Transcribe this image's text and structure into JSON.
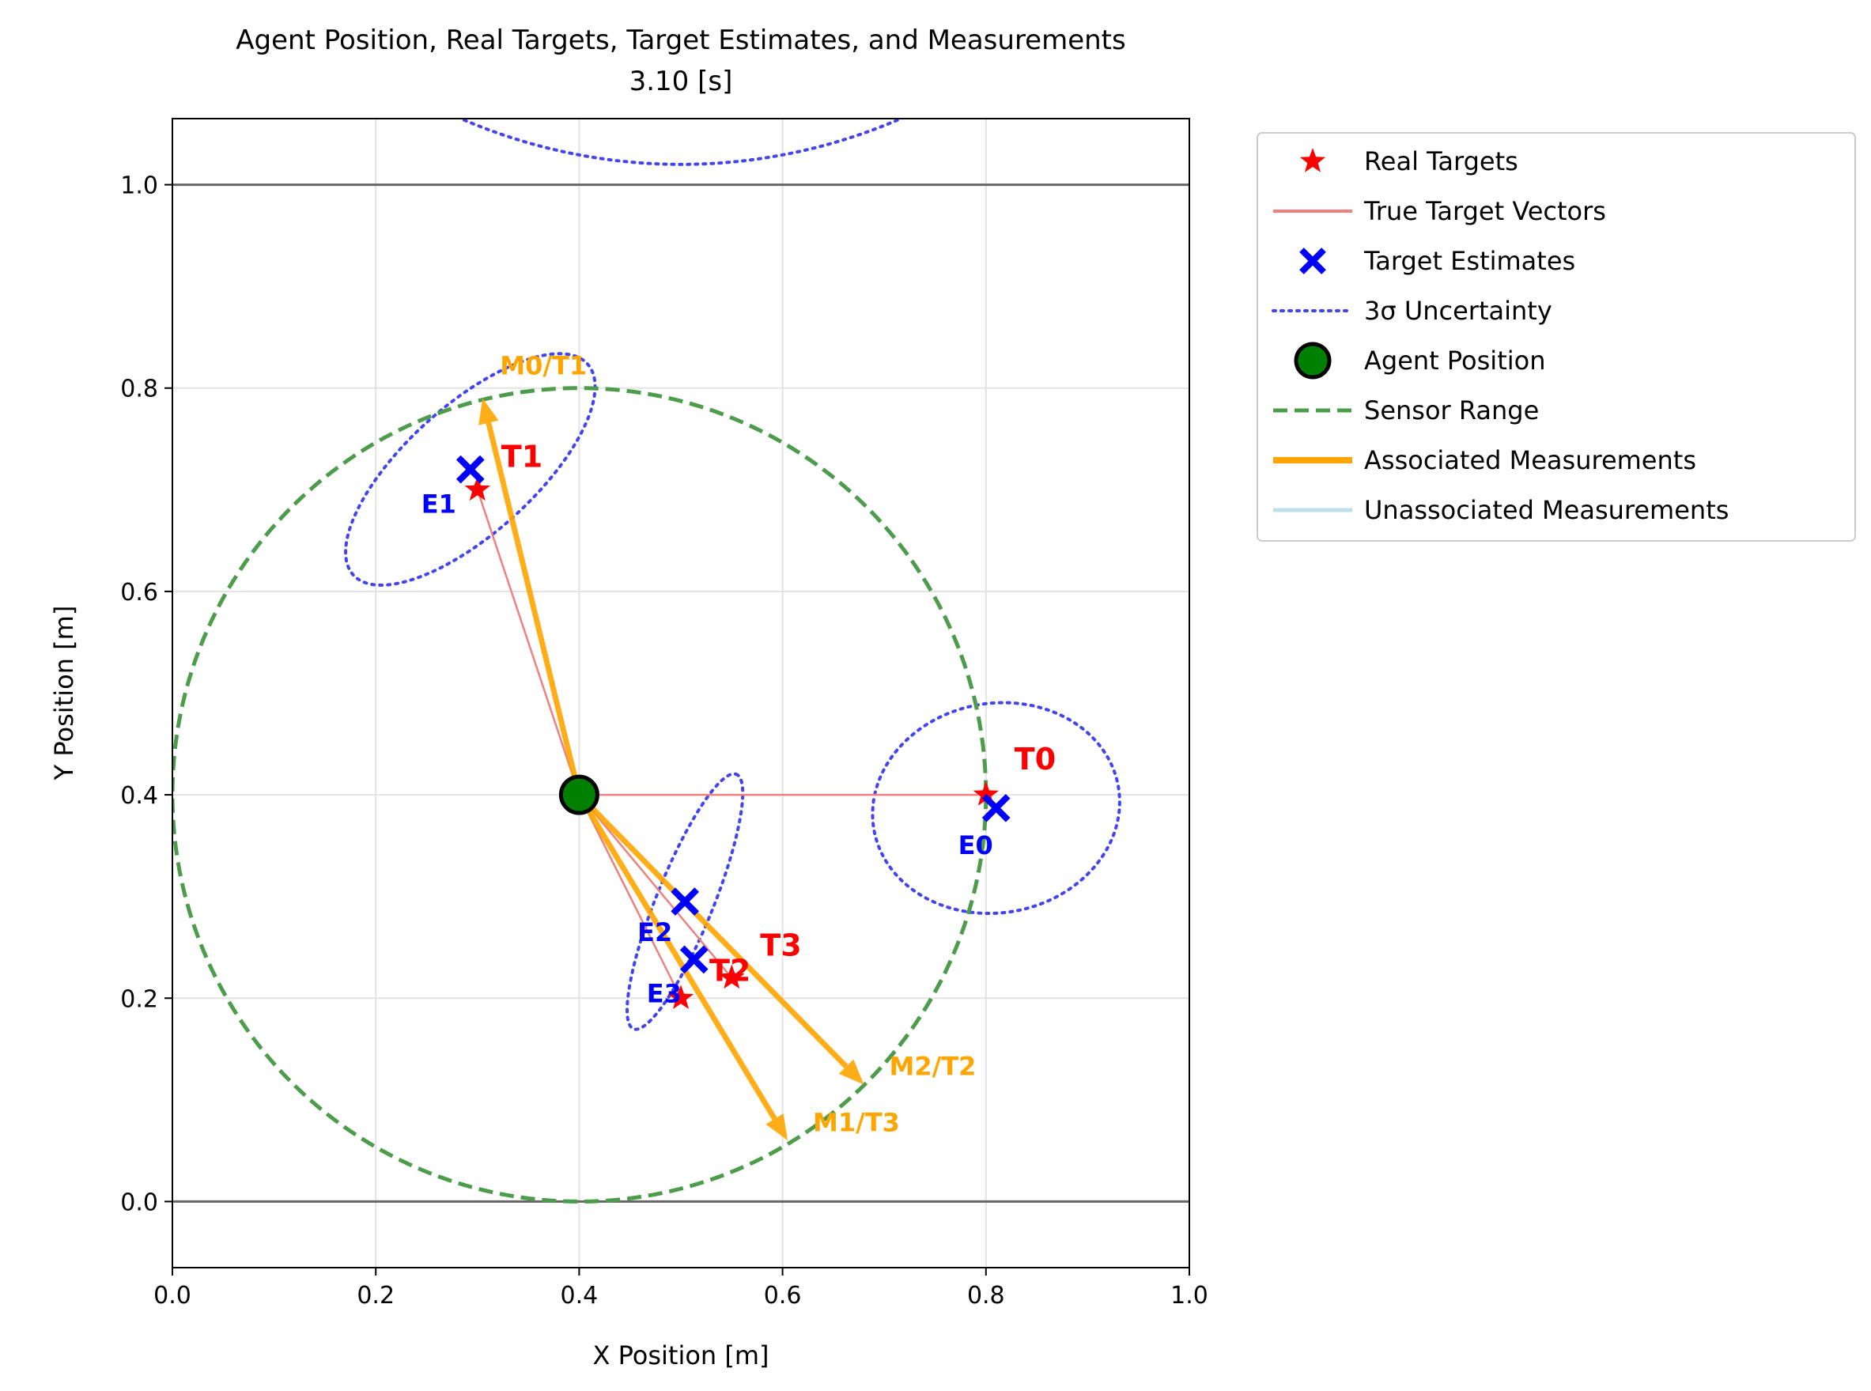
{
  "chart_data": {
    "type": "scatter",
    "title": "Agent Position, Real Targets, Target Estimates, and Measurements",
    "subtitle": "3.10 [s]",
    "xlabel": "X Position [m]",
    "ylabel": "Y Position [m]",
    "xlim": [
      0.0,
      1.0
    ],
    "ylim": [
      -0.065,
      1.065
    ],
    "xticks": [
      "0.0",
      "0.2",
      "0.4",
      "0.6",
      "0.8",
      "1.0"
    ],
    "yticks": [
      "0.0",
      "0.2",
      "0.4",
      "0.6",
      "0.8",
      "1.0"
    ],
    "grid": true,
    "boundary_lines_y": [
      0.0,
      1.0
    ],
    "agent": {
      "x": 0.4,
      "y": 0.4
    },
    "sensor_range": {
      "cx": 0.4,
      "cy": 0.4,
      "r": 0.4
    },
    "real_targets": [
      {
        "label": "T0",
        "x": 0.8,
        "y": 0.4
      },
      {
        "label": "T1",
        "x": 0.3,
        "y": 0.7
      },
      {
        "label": "T2",
        "x": 0.5,
        "y": 0.2
      },
      {
        "label": "T3",
        "x": 0.55,
        "y": 0.22
      }
    ],
    "estimates": [
      {
        "label": "E0",
        "x": 0.81,
        "y": 0.387,
        "ellipse": {
          "rx": 0.122,
          "ry": 0.103,
          "angle": -10
        }
      },
      {
        "label": "E1",
        "x": 0.293,
        "y": 0.72,
        "ellipse": {
          "rx": 0.155,
          "ry": 0.063,
          "angle": -42
        }
      },
      {
        "label": "E2",
        "x": 0.504,
        "y": 0.295,
        "ellipse": {
          "rx": 0.135,
          "ry": 0.028,
          "angle": -68
        }
      },
      {
        "label": "E3",
        "x": 0.513,
        "y": 0.238,
        "ellipse": null
      }
    ],
    "measurements": [
      {
        "label": "M0/T1",
        "x": 0.305,
        "y": 0.79
      },
      {
        "label": "M1/T3",
        "x": 0.605,
        "y": 0.06
      },
      {
        "label": "M2/T2",
        "x": 0.68,
        "y": 0.115
      }
    ],
    "colors": {
      "real_target": "#ff0000",
      "true_vector": "#f08080",
      "estimate": "#0000ff",
      "uncertainty": "#4444ee",
      "agent": "#008000",
      "sensor": "#4c9c4c",
      "associated": "#ffa500",
      "unassociated": "#add8e6"
    },
    "legend": {
      "placement": "outside-upper-right",
      "entries": [
        {
          "label": "Real Targets",
          "kind": "star"
        },
        {
          "label": "True Target Vectors",
          "kind": "line-red"
        },
        {
          "label": "Target Estimates",
          "kind": "x"
        },
        {
          "label": "3σ Uncertainty",
          "kind": "dotted"
        },
        {
          "label": "Agent Position",
          "kind": "agent"
        },
        {
          "label": "Sensor Range",
          "kind": "dashed"
        },
        {
          "label": "Associated Measurements",
          "kind": "line-orange"
        },
        {
          "label": "Unassociated Measurements",
          "kind": "line-lightblue"
        }
      ]
    }
  }
}
